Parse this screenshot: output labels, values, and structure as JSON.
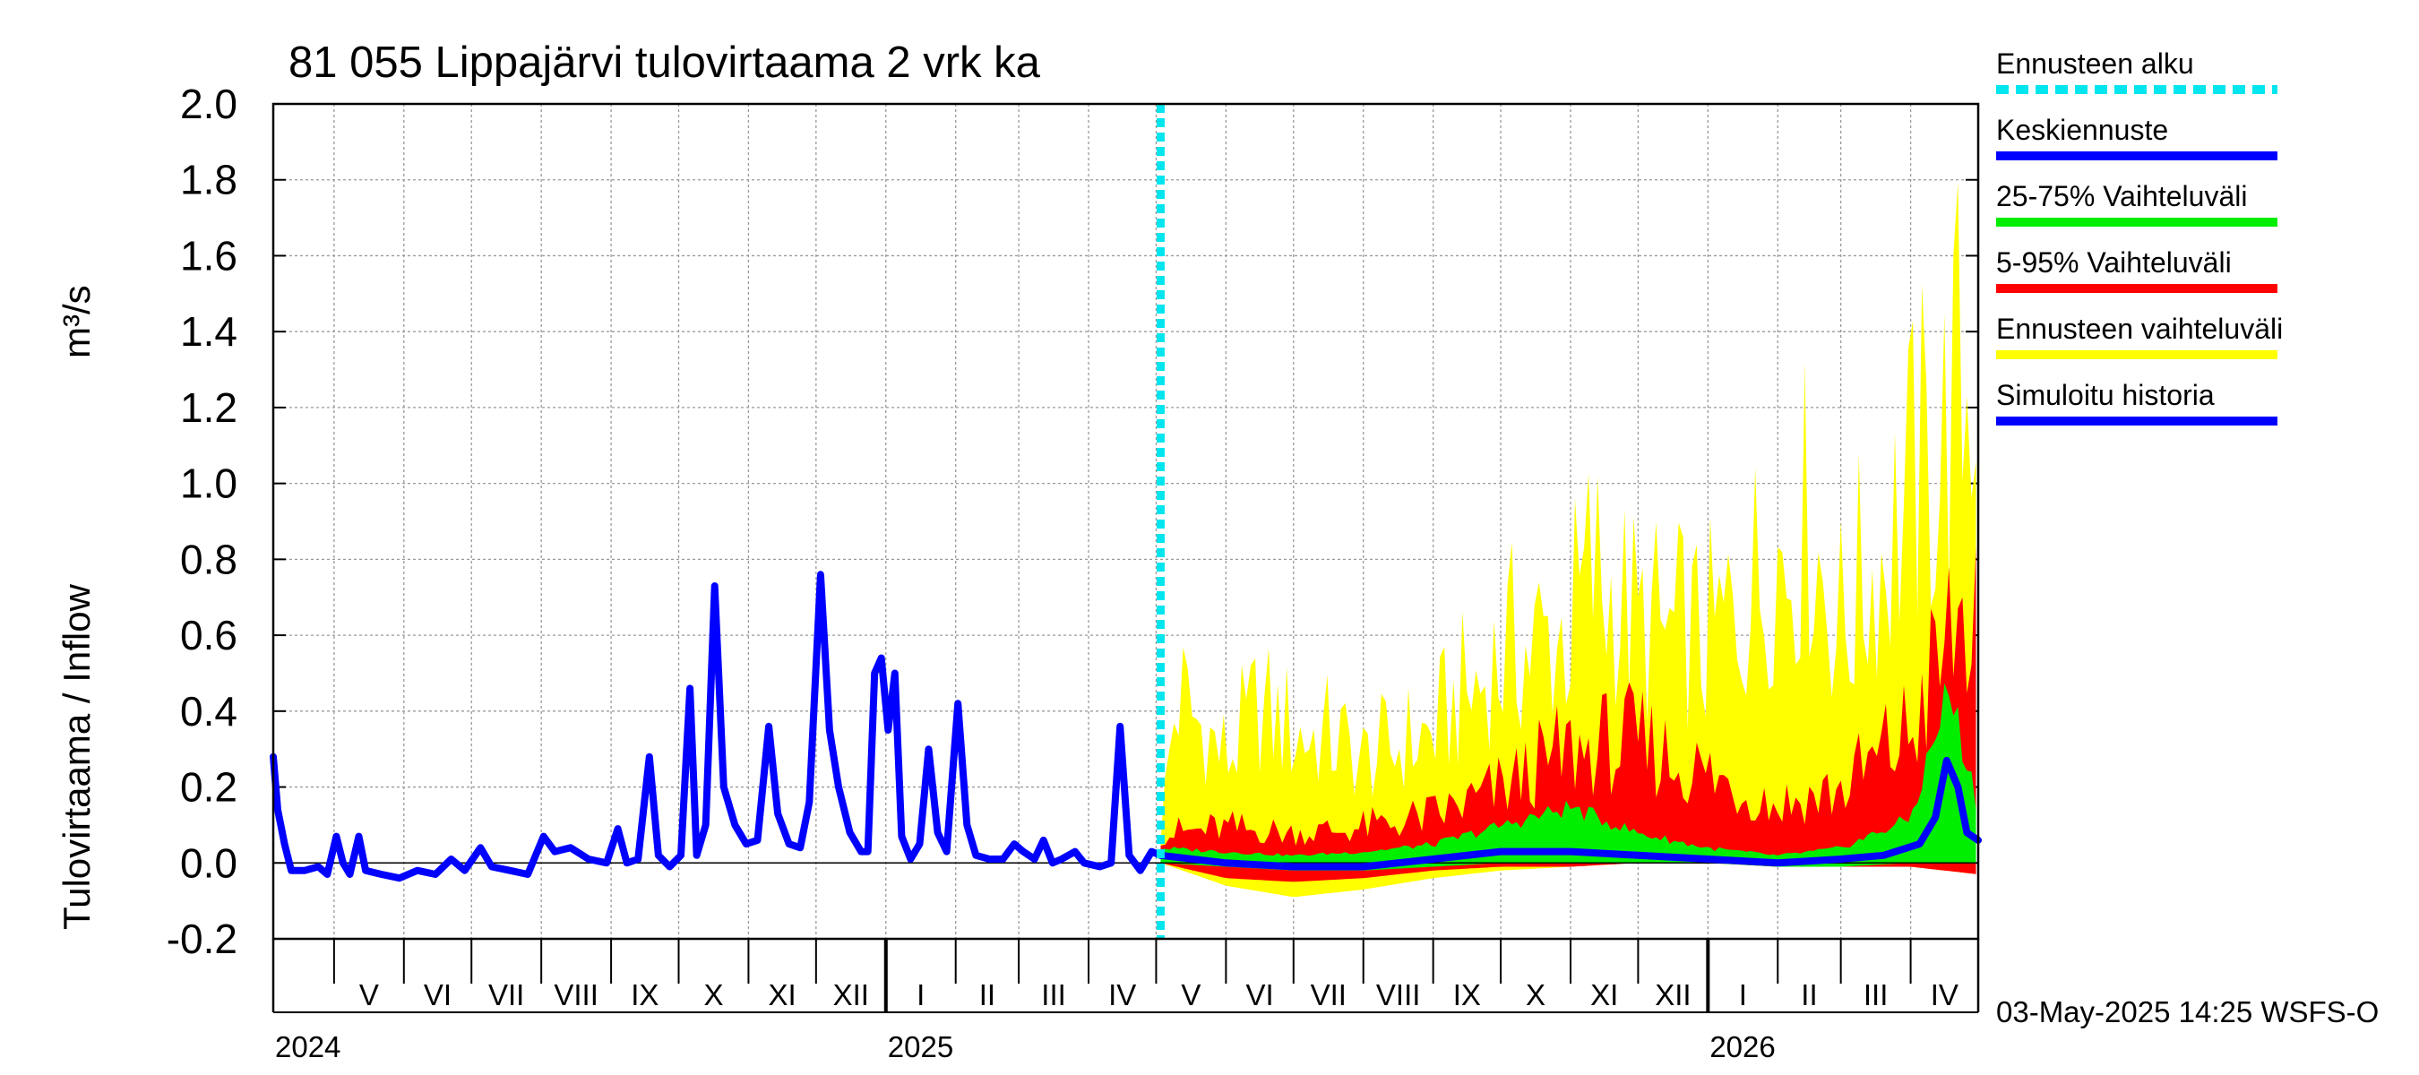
{
  "chart_data": {
    "type": "area",
    "title": "81 055 Lippajärvi tulovirtaama 2 vrk ka",
    "ylabel": "Tulovirtaama / Inflow",
    "yunit": "m³/s",
    "ylim": [
      -0.2,
      2.0
    ],
    "xlim": [
      "2024-04-04",
      "2026-05-01"
    ],
    "yticks": [
      "-0.2",
      "0.0",
      "0.2",
      "0.4",
      "0.6",
      "0.8",
      "1.0",
      "1.2",
      "1.4",
      "1.6",
      "1.8",
      "2.0"
    ],
    "forecast_start": "2025-05-03",
    "grid": true,
    "legend_position": "right",
    "legend": [
      {
        "label": "Ennusteen alku",
        "color": "#00e5ee",
        "style": "dashed"
      },
      {
        "label": "Keskiennuste",
        "color": "#0000ff",
        "style": "solid"
      },
      {
        "label": "25-75% Vaihteluväli",
        "color": "#00ee00",
        "style": "solid"
      },
      {
        "label": "5-95% Vaihteluväli",
        "color": "#ff0000",
        "style": "solid"
      },
      {
        "label": "Ennusteen vaihteluväli",
        "color": "#ffff00",
        "style": "solid"
      },
      {
        "label": "Simuloitu historia",
        "color": "#0000ff",
        "style": "solid"
      }
    ],
    "months": [
      {
        "label": "V",
        "start": "2024-05-01",
        "end": "2024-06-01"
      },
      {
        "label": "VI",
        "start": "2024-06-01",
        "end": "2024-07-01"
      },
      {
        "label": "VII",
        "start": "2024-07-01",
        "end": "2024-08-01"
      },
      {
        "label": "VIII",
        "start": "2024-08-01",
        "end": "2024-09-01"
      },
      {
        "label": "IX",
        "start": "2024-09-01",
        "end": "2024-10-01"
      },
      {
        "label": "X",
        "start": "2024-10-01",
        "end": "2024-11-01"
      },
      {
        "label": "XI",
        "start": "2024-11-01",
        "end": "2024-12-01"
      },
      {
        "label": "XII",
        "start": "2024-12-01",
        "end": "2025-01-01"
      },
      {
        "label": "I",
        "start": "2025-01-01",
        "end": "2025-02-01"
      },
      {
        "label": "II",
        "start": "2025-02-01",
        "end": "2025-03-01"
      },
      {
        "label": "III",
        "start": "2025-03-01",
        "end": "2025-04-01"
      },
      {
        "label": "IV",
        "start": "2025-04-01",
        "end": "2025-05-01"
      },
      {
        "label": "V",
        "start": "2025-05-01",
        "end": "2025-06-01"
      },
      {
        "label": "VI",
        "start": "2025-06-01",
        "end": "2025-07-01"
      },
      {
        "label": "VII",
        "start": "2025-07-01",
        "end": "2025-08-01"
      },
      {
        "label": "VIII",
        "start": "2025-08-01",
        "end": "2025-09-01"
      },
      {
        "label": "IX",
        "start": "2025-09-01",
        "end": "2025-10-01"
      },
      {
        "label": "X",
        "start": "2025-10-01",
        "end": "2025-11-01"
      },
      {
        "label": "XI",
        "start": "2025-11-01",
        "end": "2025-12-01"
      },
      {
        "label": "XII",
        "start": "2025-12-01",
        "end": "2026-01-01"
      },
      {
        "label": "I",
        "start": "2026-01-01",
        "end": "2026-02-01"
      },
      {
        "label": "II",
        "start": "2026-02-01",
        "end": "2026-03-01"
      },
      {
        "label": "III",
        "start": "2026-03-01",
        "end": "2026-04-01"
      },
      {
        "label": "IV",
        "start": "2026-04-01",
        "end": "2026-05-01"
      }
    ],
    "years": [
      {
        "label": "2024",
        "date": "2024-04-04"
      },
      {
        "label": "2025",
        "date": "2025-01-01"
      },
      {
        "label": "2026",
        "date": "2026-01-01"
      }
    ],
    "series": [
      {
        "name": "Simuloitu historia",
        "color": "#0000ff",
        "points": [
          [
            "2024-04-04",
            0.28
          ],
          [
            "2024-04-06",
            0.14
          ],
          [
            "2024-04-09",
            0.05
          ],
          [
            "2024-04-12",
            -0.02
          ],
          [
            "2024-04-18",
            -0.02
          ],
          [
            "2024-04-24",
            -0.01
          ],
          [
            "2024-04-28",
            -0.03
          ],
          [
            "2024-05-02",
            0.07
          ],
          [
            "2024-05-05",
            0.0
          ],
          [
            "2024-05-08",
            -0.03
          ],
          [
            "2024-05-12",
            0.07
          ],
          [
            "2024-05-15",
            -0.02
          ],
          [
            "2024-05-22",
            -0.03
          ],
          [
            "2024-05-30",
            -0.04
          ],
          [
            "2024-06-07",
            -0.02
          ],
          [
            "2024-06-15",
            -0.03
          ],
          [
            "2024-06-22",
            0.01
          ],
          [
            "2024-06-28",
            -0.02
          ],
          [
            "2024-07-05",
            0.04
          ],
          [
            "2024-07-10",
            -0.01
          ],
          [
            "2024-07-18",
            -0.02
          ],
          [
            "2024-07-26",
            -0.03
          ],
          [
            "2024-08-02",
            0.07
          ],
          [
            "2024-08-07",
            0.03
          ],
          [
            "2024-08-14",
            0.04
          ],
          [
            "2024-08-22",
            0.01
          ],
          [
            "2024-08-30",
            0.0
          ],
          [
            "2024-09-04",
            0.09
          ],
          [
            "2024-09-08",
            0.0
          ],
          [
            "2024-09-13",
            0.01
          ],
          [
            "2024-09-18",
            0.28
          ],
          [
            "2024-09-22",
            0.02
          ],
          [
            "2024-09-27",
            -0.01
          ],
          [
            "2024-10-02",
            0.02
          ],
          [
            "2024-10-06",
            0.46
          ],
          [
            "2024-10-09",
            0.02
          ],
          [
            "2024-10-13",
            0.1
          ],
          [
            "2024-10-17",
            0.73
          ],
          [
            "2024-10-21",
            0.2
          ],
          [
            "2024-10-26",
            0.1
          ],
          [
            "2024-10-31",
            0.05
          ],
          [
            "2024-11-05",
            0.06
          ],
          [
            "2024-11-10",
            0.36
          ],
          [
            "2024-11-14",
            0.13
          ],
          [
            "2024-11-19",
            0.05
          ],
          [
            "2024-11-24",
            0.04
          ],
          [
            "2024-11-28",
            0.16
          ],
          [
            "2024-12-03",
            0.76
          ],
          [
            "2024-12-07",
            0.35
          ],
          [
            "2024-12-11",
            0.2
          ],
          [
            "2024-12-16",
            0.08
          ],
          [
            "2024-12-21",
            0.03
          ],
          [
            "2024-12-24",
            0.03
          ],
          [
            "2024-12-27",
            0.5
          ],
          [
            "2024-12-30",
            0.54
          ],
          [
            "2025-01-02",
            0.35
          ],
          [
            "2025-01-05",
            0.5
          ],
          [
            "2025-01-08",
            0.07
          ],
          [
            "2025-01-12",
            0.01
          ],
          [
            "2025-01-16",
            0.05
          ],
          [
            "2025-01-20",
            0.3
          ],
          [
            "2025-01-24",
            0.08
          ],
          [
            "2025-01-28",
            0.03
          ],
          [
            "2025-02-02",
            0.42
          ],
          [
            "2025-02-06",
            0.1
          ],
          [
            "2025-02-10",
            0.02
          ],
          [
            "2025-02-16",
            0.01
          ],
          [
            "2025-02-22",
            0.01
          ],
          [
            "2025-02-27",
            0.05
          ],
          [
            "2025-03-03",
            0.03
          ],
          [
            "2025-03-08",
            0.01
          ],
          [
            "2025-03-12",
            0.06
          ],
          [
            "2025-03-16",
            0.0
          ],
          [
            "2025-03-20",
            0.01
          ],
          [
            "2025-03-26",
            0.03
          ],
          [
            "2025-03-30",
            0.0
          ],
          [
            "2025-04-06",
            -0.01
          ],
          [
            "2025-04-11",
            0.0
          ],
          [
            "2025-04-15",
            0.36
          ],
          [
            "2025-04-19",
            0.02
          ],
          [
            "2025-04-24",
            -0.02
          ],
          [
            "2025-04-29",
            0.03
          ],
          [
            "2025-05-03",
            0.02
          ]
        ]
      },
      {
        "name": "Keskiennuste",
        "color": "#0000ff",
        "points": [
          [
            "2025-05-03",
            0.02
          ],
          [
            "2025-06-01",
            0.0
          ],
          [
            "2025-07-01",
            -0.01
          ],
          [
            "2025-08-01",
            -0.01
          ],
          [
            "2025-09-01",
            0.01
          ],
          [
            "2025-10-01",
            0.03
          ],
          [
            "2025-11-01",
            0.03
          ],
          [
            "2025-12-01",
            0.02
          ],
          [
            "2026-01-01",
            0.01
          ],
          [
            "2026-02-01",
            0.0
          ],
          [
            "2026-03-01",
            0.01
          ],
          [
            "2026-03-20",
            0.02
          ],
          [
            "2026-04-05",
            0.05
          ],
          [
            "2026-04-12",
            0.12
          ],
          [
            "2026-04-17",
            0.27
          ],
          [
            "2026-04-22",
            0.2
          ],
          [
            "2026-04-26",
            0.08
          ],
          [
            "2026-05-01",
            0.06
          ]
        ]
      },
      {
        "name": "25-75% Vaihteluväli",
        "color": "#00ee00",
        "upper": [
          [
            "2025-05-03",
            0.04
          ],
          [
            "2025-06-01",
            0.03
          ],
          [
            "2025-07-01",
            0.02
          ],
          [
            "2025-08-01",
            0.03
          ],
          [
            "2025-09-01",
            0.05
          ],
          [
            "2025-10-01",
            0.1
          ],
          [
            "2025-11-01",
            0.15
          ],
          [
            "2025-12-01",
            0.08
          ],
          [
            "2026-01-01",
            0.04
          ],
          [
            "2026-02-01",
            0.02
          ],
          [
            "2026-03-01",
            0.04
          ],
          [
            "2026-04-01",
            0.12
          ],
          [
            "2026-04-18",
            0.47
          ],
          [
            "2026-05-01",
            0.15
          ]
        ],
        "lower": [
          [
            "2025-05-03",
            0.0
          ],
          [
            "2025-06-01",
            -0.01
          ],
          [
            "2025-07-01",
            -0.02
          ],
          [
            "2025-08-01",
            -0.02
          ],
          [
            "2025-09-01",
            -0.01
          ],
          [
            "2025-10-01",
            0.0
          ],
          [
            "2025-11-01",
            0.0
          ],
          [
            "2025-12-01",
            0.0
          ],
          [
            "2026-01-01",
            0.0
          ],
          [
            "2026-02-01",
            -0.01
          ],
          [
            "2026-03-01",
            -0.01
          ],
          [
            "2026-04-01",
            0.0
          ],
          [
            "2026-05-01",
            0.0
          ]
        ]
      },
      {
        "name": "5-95% Vaihteluväli",
        "color": "#ff0000",
        "upper": [
          [
            "2025-05-03",
            0.1
          ],
          [
            "2025-06-01",
            0.12
          ],
          [
            "2025-07-01",
            0.1
          ],
          [
            "2025-08-01",
            0.12
          ],
          [
            "2025-09-01",
            0.16
          ],
          [
            "2025-10-01",
            0.25
          ],
          [
            "2025-11-01",
            0.38
          ],
          [
            "2025-12-01",
            0.4
          ],
          [
            "2026-01-01",
            0.3
          ],
          [
            "2026-02-01",
            0.2
          ],
          [
            "2026-03-01",
            0.25
          ],
          [
            "2026-04-01",
            0.45
          ],
          [
            "2026-04-25",
            0.87
          ],
          [
            "2026-05-01",
            0.75
          ]
        ],
        "lower": [
          [
            "2025-05-03",
            0.0
          ],
          [
            "2025-06-01",
            -0.04
          ],
          [
            "2025-07-01",
            -0.05
          ],
          [
            "2025-08-01",
            -0.04
          ],
          [
            "2025-09-01",
            -0.02
          ],
          [
            "2025-10-01",
            -0.01
          ],
          [
            "2025-11-01",
            -0.01
          ],
          [
            "2025-12-01",
            0.0
          ],
          [
            "2026-01-01",
            0.0
          ],
          [
            "2026-02-01",
            -0.01
          ],
          [
            "2026-03-01",
            -0.01
          ],
          [
            "2026-04-01",
            -0.01
          ],
          [
            "2026-05-01",
            -0.03
          ]
        ]
      },
      {
        "name": "Ennusteen vaihteluväli",
        "color": "#ffff00",
        "upper": [
          [
            "2025-05-03",
            0.1
          ],
          [
            "2025-05-10",
            0.58
          ],
          [
            "2025-06-01",
            0.36
          ],
          [
            "2025-06-15",
            0.52
          ],
          [
            "2025-07-01",
            0.45
          ],
          [
            "2025-07-20",
            0.42
          ],
          [
            "2025-08-01",
            0.35
          ],
          [
            "2025-09-01",
            0.45
          ],
          [
            "2025-10-01",
            0.7
          ],
          [
            "2025-11-01",
            0.8
          ],
          [
            "2025-11-10",
            1.0
          ],
          [
            "2025-12-01",
            0.8
          ],
          [
            "2026-01-01",
            0.75
          ],
          [
            "2026-02-01",
            1.05
          ],
          [
            "2026-02-15",
            1.15
          ],
          [
            "2026-03-01",
            0.8
          ],
          [
            "2026-04-01",
            1.25
          ],
          [
            "2026-04-15",
            1.4
          ],
          [
            "2026-05-01",
            1.8
          ]
        ],
        "lower": [
          [
            "2025-05-03",
            0.0
          ],
          [
            "2025-06-01",
            -0.06
          ],
          [
            "2025-07-01",
            -0.09
          ],
          [
            "2025-08-01",
            -0.07
          ],
          [
            "2025-09-01",
            -0.04
          ],
          [
            "2025-10-01",
            -0.02
          ],
          [
            "2025-11-01",
            -0.01
          ],
          [
            "2025-12-01",
            0.0
          ],
          [
            "2026-01-01",
            0.0
          ],
          [
            "2026-02-01",
            -0.01
          ],
          [
            "2026-03-01",
            -0.01
          ],
          [
            "2026-04-01",
            -0.01
          ],
          [
            "2026-05-01",
            -0.03
          ]
        ]
      }
    ]
  },
  "footer": {
    "timestamp": "03-May-2025 14:25 WSFS-O"
  }
}
